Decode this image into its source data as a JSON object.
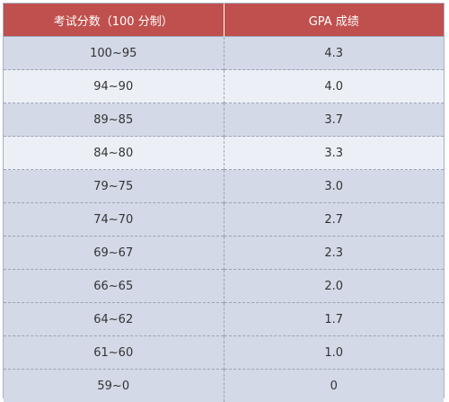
{
  "header": {
    "score_label": "考试分数（100 分制）",
    "gpa_label": "GPA 成绩"
  },
  "rows": [
    {
      "score": "100~95",
      "gpa": "4.3"
    },
    {
      "score": "94~90",
      "gpa": "4.0"
    },
    {
      "score": "89~85",
      "gpa": "3.7"
    },
    {
      "score": "84~80",
      "gpa": "3.3"
    },
    {
      "score": "79~75",
      "gpa": "3.0"
    },
    {
      "score": "74~70",
      "gpa": "2.7"
    },
    {
      "score": "69~67",
      "gpa": "2.3"
    },
    {
      "score": "66~65",
      "gpa": "2.0"
    },
    {
      "score": "64~62",
      "gpa": "1.7"
    },
    {
      "score": "61~60",
      "gpa": "1.0"
    },
    {
      "score": "59~0",
      "gpa": "0"
    }
  ],
  "colors": {
    "header_bg": "#c0504d",
    "row_dark": "#d3d9e7",
    "row_light": "#ecf0f6"
  }
}
